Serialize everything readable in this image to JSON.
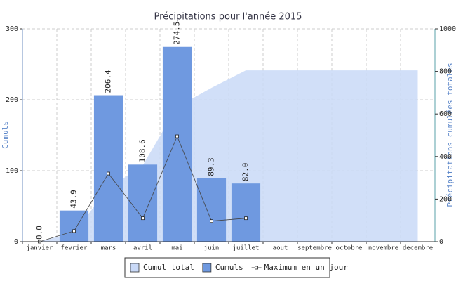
{
  "chart_data": {
    "type": "bar",
    "title": "Précipitations pour l'année 2015",
    "ylabel": "Cumuls",
    "y2label": "Précipitations cumulées totales",
    "categories": [
      "janvier",
      "fevrier",
      "mars",
      "avril",
      "mai",
      "juin",
      "juillet",
      "aout",
      "septembre",
      "octobre",
      "novembre",
      "decembre"
    ],
    "series": [
      {
        "name": "Cumul total",
        "kind": "area",
        "axis": "y2",
        "color": "#c9d9f7",
        "values": [
          0,
          43.9,
          250.3,
          358.9,
          633.4,
          722.7,
          804.7,
          804.7,
          804.7,
          804.7,
          804.7,
          804.7
        ]
      },
      {
        "name": "Cumuls",
        "kind": "bar",
        "color": "#6f99e0",
        "values": [
          0,
          43.9,
          206.4,
          108.6,
          274.5,
          89.3,
          82.0,
          null,
          null,
          null,
          null,
          null
        ],
        "value_labels": [
          "0.0",
          "43.9",
          "206.4",
          "108.6",
          "274.5",
          "89.3",
          "82.0",
          null,
          null,
          null,
          null,
          null
        ]
      },
      {
        "name": "Maximum en un jour",
        "kind": "line",
        "color": "#444444",
        "values": [
          0,
          15,
          96,
          33,
          148.5,
          29,
          33,
          null,
          null,
          null,
          null,
          null
        ]
      }
    ],
    "ylim": [
      0,
      300
    ],
    "yticks": [
      0,
      100,
      200,
      300
    ],
    "y2lim": [
      0,
      1000
    ],
    "y2ticks": [
      0,
      200,
      400,
      600,
      800,
      1000
    ],
    "grid": true
  }
}
